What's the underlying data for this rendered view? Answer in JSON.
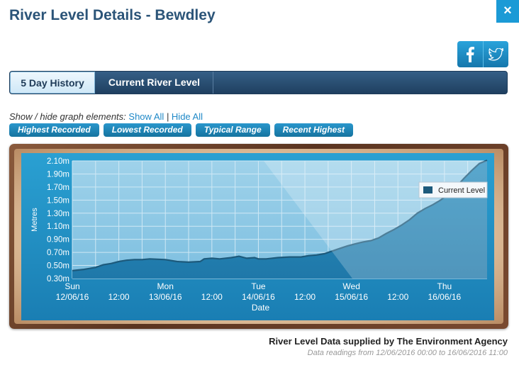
{
  "header": {
    "title": "River Level Details - Bewdley",
    "close_label": "×"
  },
  "social": {
    "facebook_icon": "facebook-icon",
    "twitter_icon": "twitter-icon",
    "facebook_label": "f"
  },
  "tabs": [
    {
      "label": "5 Day History",
      "active": true
    },
    {
      "label": "Current River Level",
      "active": false
    }
  ],
  "toggles": {
    "prefix": "Show / hide graph elements:",
    "show_all": "Show All",
    "separator": "|",
    "hide_all": "Hide All"
  },
  "elements": [
    {
      "label": "Highest Recorded"
    },
    {
      "label": "Lowest Recorded"
    },
    {
      "label": "Typical Range"
    },
    {
      "label": "Recent Highest"
    }
  ],
  "chart_data": {
    "type": "area",
    "ylabel": "Metres",
    "xlabel": "Date",
    "ylim": [
      0.3,
      2.1
    ],
    "yticks": [
      "0.30m",
      "0.50m",
      "0.70m",
      "0.90m",
      "1.10m",
      "1.30m",
      "1.50m",
      "1.70m",
      "1.90m",
      "2.10m"
    ],
    "xticks": [
      {
        "line1": "Sun",
        "line2": "12/06/16",
        "hour": 0
      },
      {
        "line1": "",
        "line2": "12:00",
        "hour": 12
      },
      {
        "line1": "Mon",
        "line2": "13/06/16",
        "hour": 24
      },
      {
        "line1": "",
        "line2": "12:00",
        "hour": 36
      },
      {
        "line1": "Tue",
        "line2": "14/06/16",
        "hour": 48
      },
      {
        "line1": "",
        "line2": "12:00",
        "hour": 60
      },
      {
        "line1": "Wed",
        "line2": "15/06/16",
        "hour": 72
      },
      {
        "line1": "",
        "line2": "12:00",
        "hour": 84
      },
      {
        "line1": "Thu",
        "line2": "16/06/16",
        "hour": 96
      }
    ],
    "legend": {
      "position": "top-right"
    },
    "grid": true,
    "series": [
      {
        "name": "Current Level",
        "color": "#1d5a7c",
        "points": [
          [
            0,
            0.42
          ],
          [
            3,
            0.44
          ],
          [
            6,
            0.47
          ],
          [
            8,
            0.51
          ],
          [
            10,
            0.53
          ],
          [
            12,
            0.56
          ],
          [
            14,
            0.58
          ],
          [
            16,
            0.59
          ],
          [
            18,
            0.59
          ],
          [
            20,
            0.6
          ],
          [
            24,
            0.59
          ],
          [
            27,
            0.56
          ],
          [
            30,
            0.55
          ],
          [
            33,
            0.56
          ],
          [
            34,
            0.6
          ],
          [
            36,
            0.61
          ],
          [
            38,
            0.6
          ],
          [
            41,
            0.62
          ],
          [
            43,
            0.64
          ],
          [
            45,
            0.61
          ],
          [
            47,
            0.62
          ],
          [
            48,
            0.6
          ],
          [
            50,
            0.6
          ],
          [
            53,
            0.62
          ],
          [
            56,
            0.63
          ],
          [
            59,
            0.63
          ],
          [
            61,
            0.65
          ],
          [
            63,
            0.66
          ],
          [
            65,
            0.68
          ],
          [
            67,
            0.72
          ],
          [
            69,
            0.76
          ],
          [
            71,
            0.8
          ],
          [
            73,
            0.83
          ],
          [
            75,
            0.86
          ],
          [
            77,
            0.88
          ],
          [
            79,
            0.92
          ],
          [
            81,
            0.99
          ],
          [
            83,
            1.05
          ],
          [
            85,
            1.12
          ],
          [
            87,
            1.2
          ],
          [
            89,
            1.3
          ],
          [
            91,
            1.37
          ],
          [
            93,
            1.43
          ],
          [
            95,
            1.5
          ],
          [
            97,
            1.59
          ],
          [
            99,
            1.7
          ],
          [
            101,
            1.83
          ],
          [
            103,
            1.95
          ],
          [
            105,
            2.06
          ],
          [
            107,
            2.11
          ]
        ]
      }
    ],
    "x_max_hour": 107
  },
  "footer": {
    "credit": "River Level Data supplied by The Environment Agency",
    "readings": "Data readings from 12/06/2016 00:00 to 16/06/2016 11:00"
  }
}
